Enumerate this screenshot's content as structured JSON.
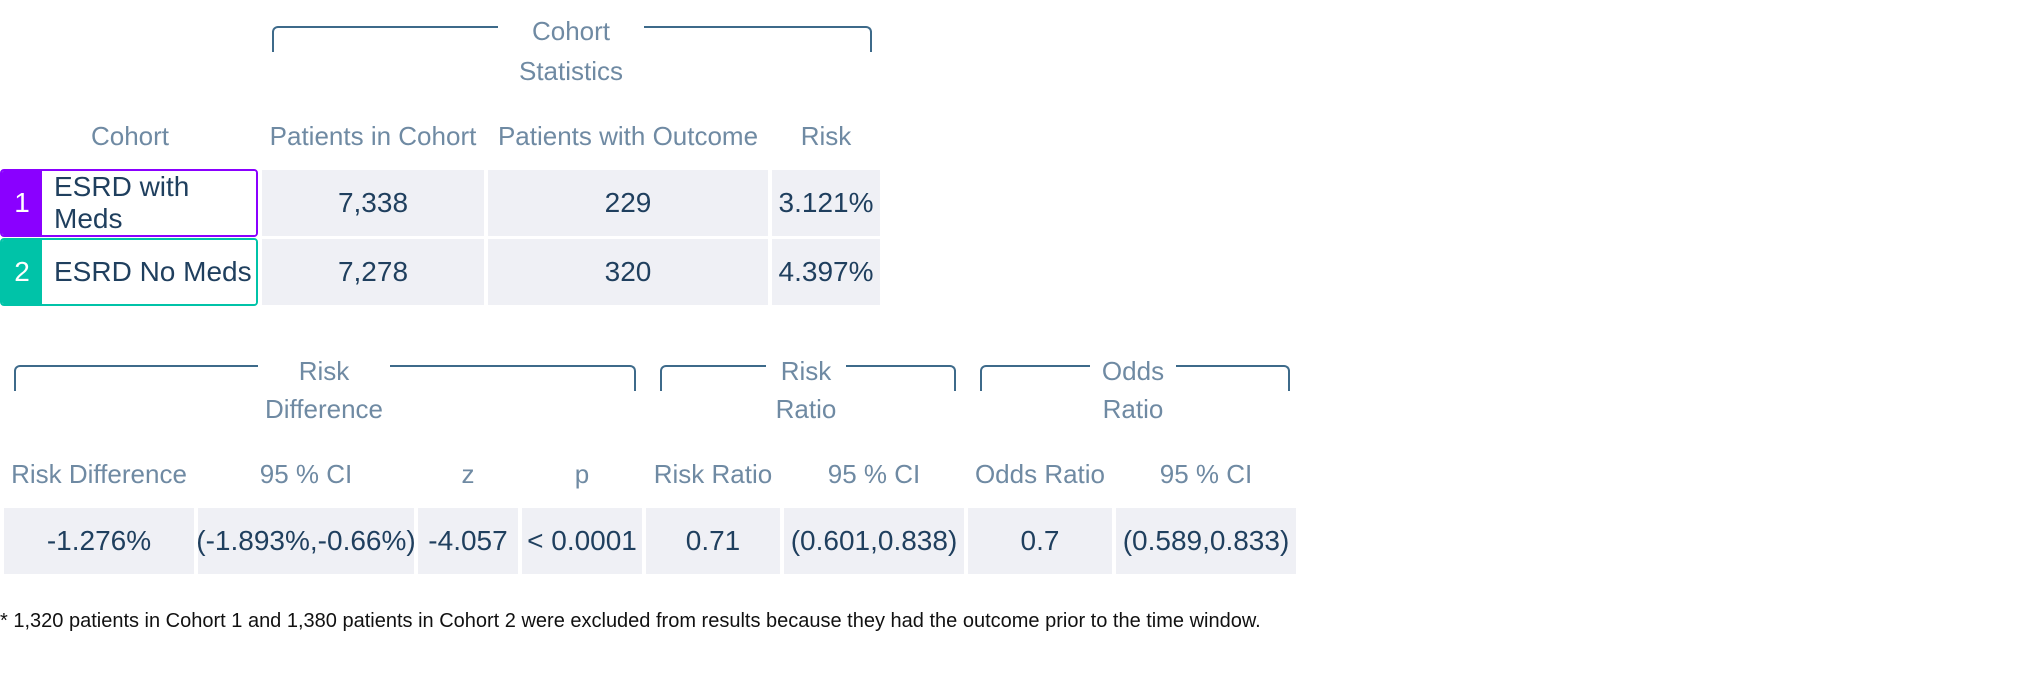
{
  "cohort_stats": {
    "group_label": [
      "Cohort",
      "Statistics"
    ],
    "headers": {
      "cohort": "Cohort",
      "patients_in_cohort": "Patients in Cohort",
      "patients_with_outcome": "Patients with Outcome",
      "risk": "Risk"
    },
    "rows": [
      {
        "index": "1",
        "name": "ESRD with Meds",
        "patients": "7,338",
        "outcome": "229",
        "risk": "3.121%",
        "color": "#8a00ff"
      },
      {
        "index": "2",
        "name": "ESRD No Meds",
        "patients": "7,278",
        "outcome": "320",
        "risk": "4.397%",
        "color": "#00c3a8"
      }
    ]
  },
  "comparison": {
    "groups": {
      "risk_difference": [
        "Risk",
        "Difference"
      ],
      "risk_ratio": [
        "Risk",
        "Ratio"
      ],
      "odds_ratio": [
        "Odds",
        "Ratio"
      ]
    },
    "headers": {
      "risk_difference": "Risk Difference",
      "rd_ci": "95 % CI",
      "z": "z",
      "p": "p",
      "risk_ratio": "Risk Ratio",
      "rr_ci": "95 % CI",
      "odds_ratio": "Odds Ratio",
      "or_ci": "95 % CI"
    },
    "values": {
      "risk_difference": "-1.276%",
      "rd_ci": "(-1.893%,-0.66%)",
      "z": "-4.057",
      "p": "< 0.0001",
      "risk_ratio": "0.71",
      "rr_ci": "(0.601,0.838)",
      "odds_ratio": "0.7",
      "or_ci": "(0.589,0.833)"
    }
  },
  "footnote": "* 1,320 patients in Cohort 1 and 1,380 patients in Cohort 2 were excluded from results because they had the outcome prior to the time window."
}
